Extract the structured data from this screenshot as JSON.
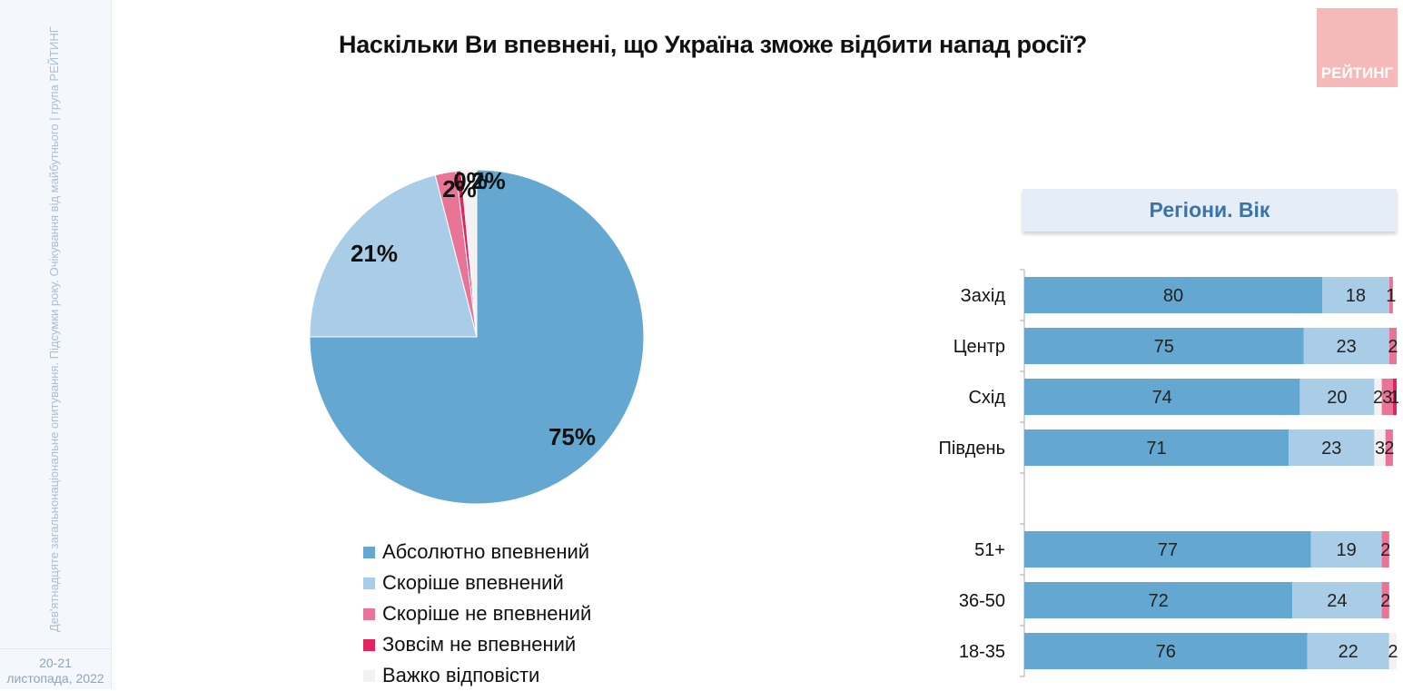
{
  "sidebar": {
    "vertical_text": "Дев'ятнадцяте загальнонаціональне опитування. Підсумки року. Очікування від майбутнього | група РЕЙТИНГ",
    "date_line1": "20-21",
    "date_line2": "листопада, 2022"
  },
  "title": "Наскільки Ви впевнені, що Україна зможе відбити напад росії?",
  "logo_text": "РЕЙТИНГ",
  "panel_header": "Регіони. Вік",
  "colors": {
    "absolutely": "#64a8d1",
    "rather": "#a9cde6",
    "rather_not": "#e87598",
    "not_at_all": "#e0245f",
    "hard": "#f2f2f2"
  },
  "chart_data": [
    {
      "type": "pie",
      "title": "Наскільки Ви впевнені, що Україна зможе відбити напад росії?",
      "slices": [
        {
          "name": "Абсолютно впевнений",
          "value": 75,
          "label": "75%",
          "color": "#64a8d1"
        },
        {
          "name": "Скоріше впевнений",
          "value": 21,
          "label": "21%",
          "color": "#a9cde6"
        },
        {
          "name": "Скоріше не впевнений",
          "value": 2,
          "label": "2%",
          "color": "#e87598"
        },
        {
          "name": "Зовсім не впевнений",
          "value": 0.5,
          "label": "0%",
          "color": "#e0245f"
        },
        {
          "name": "Важко відповісти",
          "value": 1.5,
          "label": "2%",
          "color": "#f2f2f2"
        }
      ],
      "legend": [
        "Абсолютно впевнений",
        "Скоріше впевнений",
        "Скоріше не впевнений",
        "Зовсім не впевнений",
        "Важко відповісти"
      ],
      "legend_position": "bottom"
    },
    {
      "type": "bar",
      "orientation": "horizontal",
      "stacked": true,
      "categories": [
        "Захід",
        "Центр",
        "Схід",
        "Південь",
        "",
        "51+",
        "36-50",
        "18-35"
      ],
      "series": [
        {
          "name": "Абсолютно впевнений",
          "values": [
            80,
            75,
            74,
            71,
            null,
            77,
            72,
            76
          ]
        },
        {
          "name": "Скоріше впевнений",
          "values": [
            18,
            23,
            20,
            23,
            null,
            19,
            24,
            22
          ]
        },
        {
          "name": "Важко відповісти",
          "values": [
            0,
            0,
            2,
            3,
            null,
            0,
            0,
            2
          ]
        },
        {
          "name": "Скоріше не впевнений",
          "values": [
            1,
            2,
            3,
            2,
            null,
            2,
            2,
            0
          ]
        },
        {
          "name": "Зовсім не впевнений",
          "values": [
            0,
            0,
            1,
            0,
            null,
            0,
            0,
            0
          ]
        }
      ],
      "xlim": [
        0,
        100
      ]
    }
  ]
}
